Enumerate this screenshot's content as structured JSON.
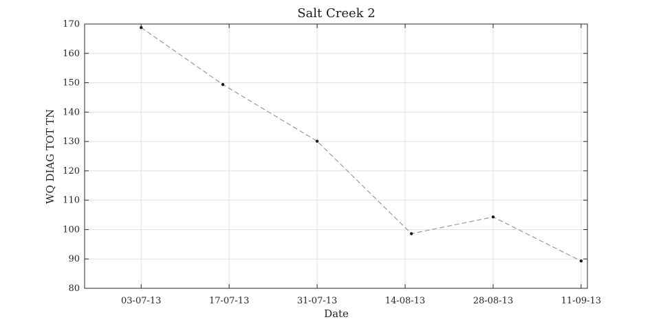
{
  "chart_data": {
    "type": "line",
    "title": "Salt Creek 2",
    "xlabel": "Date",
    "ylabel": "WQ DIAG TOT TN",
    "ylim": [
      80,
      170
    ],
    "yticks": [
      80,
      90,
      100,
      110,
      120,
      130,
      140,
      150,
      160,
      170
    ],
    "xlim": [
      "2013-06-24",
      "2013-09-12"
    ],
    "xticks": [
      {
        "date": "2013-07-03",
        "label": "03-07-13"
      },
      {
        "date": "2013-07-17",
        "label": "17-07-13"
      },
      {
        "date": "2013-07-31",
        "label": "31-07-13"
      },
      {
        "date": "2013-08-14",
        "label": "14-08-13"
      },
      {
        "date": "2013-08-28",
        "label": "28-08-13"
      },
      {
        "date": "2013-09-11",
        "label": "11-09-13"
      }
    ],
    "grid": true,
    "series": [
      {
        "x": [
          "2013-07-03",
          "2013-07-16",
          "2013-07-31",
          "2013-08-15",
          "2013-08-28",
          "2013-09-11"
        ],
        "values": [
          168.8,
          149.4,
          130.1,
          98.6,
          104.3,
          89.3
        ],
        "color": "#999999",
        "marker_color": "#1a1a1a",
        "line_style": "dashed"
      }
    ]
  }
}
